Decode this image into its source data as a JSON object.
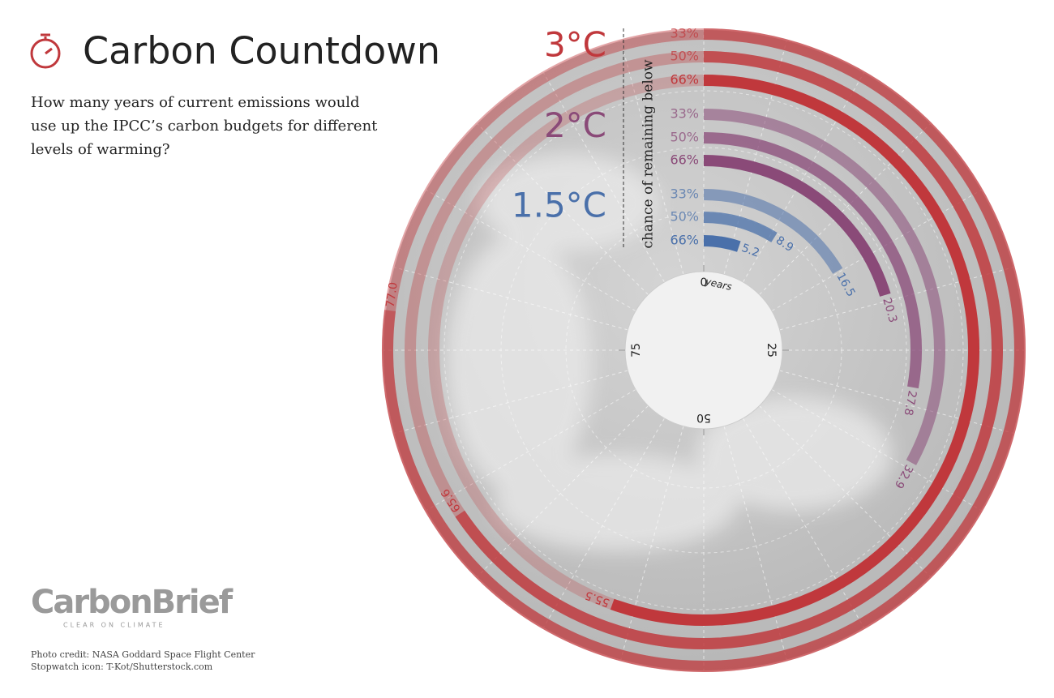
{
  "chart_data": {
    "type": "radial_bar",
    "title": "Carbon Countdown",
    "subtitle": "How many years of current emissions would use up the IPCC’s carbon budgets for different levels of warming?",
    "rlim": [
      0,
      100
    ],
    "rticks": [
      0,
      25,
      50,
      75
    ],
    "rtick_unit": "years",
    "legend_title": "chance of remaining below",
    "groups": [
      {
        "name": "1.5°C",
        "color": "#4a70aa",
        "series": [
          {
            "name": "66%",
            "value": 5.2
          },
          {
            "name": "50%",
            "value": 8.9
          },
          {
            "name": "33%",
            "value": 16.5
          }
        ]
      },
      {
        "name": "2°C",
        "color": "#8a4a78",
        "series": [
          {
            "name": "66%",
            "value": 20.3
          },
          {
            "name": "50%",
            "value": 27.8
          },
          {
            "name": "33%",
            "value": 32.9
          }
        ]
      },
      {
        "name": "3°C",
        "color": "#c0383c",
        "series": [
          {
            "name": "66%",
            "value": 55.5
          },
          {
            "name": "50%",
            "value": 65.6
          },
          {
            "name": "33%",
            "value": 77,
            "value_label": "77.0"
          }
        ]
      }
    ]
  },
  "footer": {
    "logo": "CarbonBrief",
    "tagline": "CLEAR ON CLIMATE",
    "credits": [
      "Photo credit: NASA Goddard Space Flight Center",
      "Stopwatch icon: T-Kot/Shutterstock.com"
    ]
  }
}
